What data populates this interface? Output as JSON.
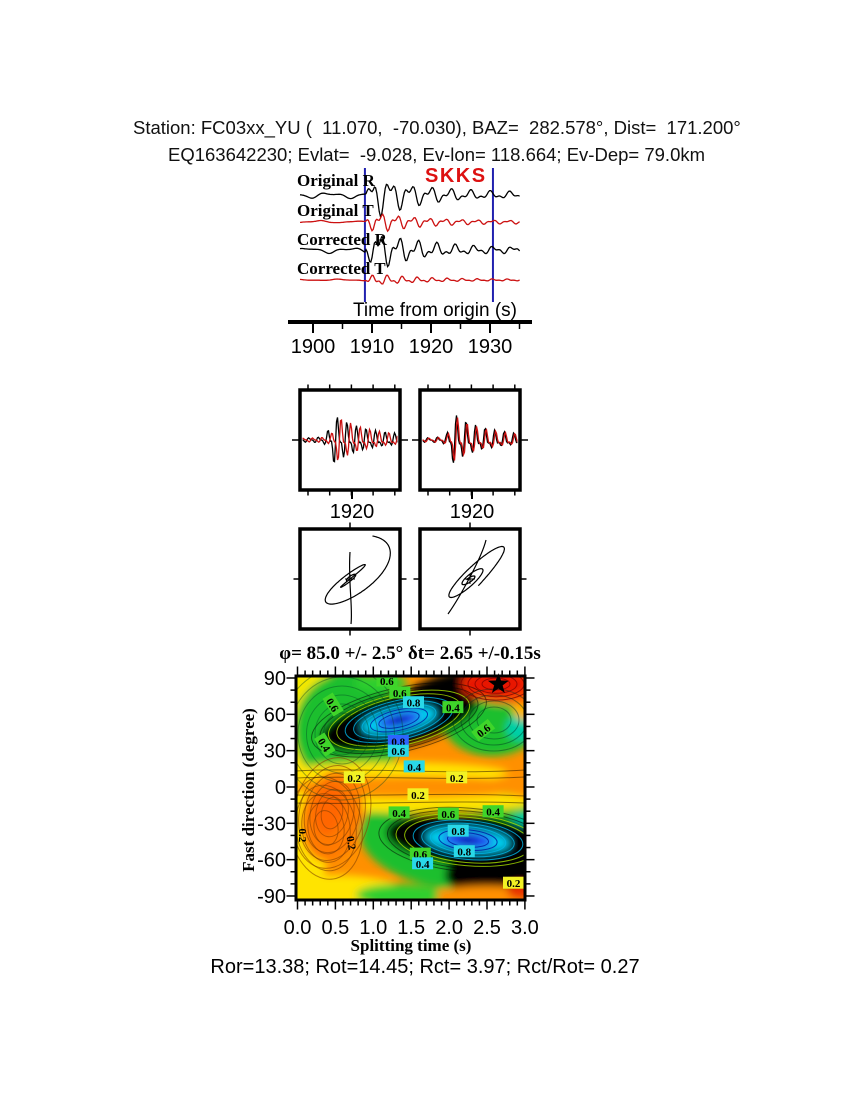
{
  "header": {
    "line1": "Station: FC03xx_YU (  11.070,  -70.030), BAZ=  282.578°, Dist=  171.200°",
    "line2": "EQ163642230; Evlat=  -9.028, Ev-lon= 118.664; Ev-Dep= 79.0km"
  },
  "waveform_panel": {
    "phase_label": "SKKS",
    "pick_color": "#2121af",
    "window_s": [
      1908.8,
      1930.5
    ],
    "axis_label": "Time from origin (s)",
    "ticks": [
      1900,
      1910,
      1920,
      1930
    ],
    "traces": [
      {
        "label": "Original R",
        "color": "#000000",
        "synth": {
          "amp": 26,
          "p1": 20,
          "p2": 9.5,
          "ph1": 0.2,
          "ph2": 1.1
        }
      },
      {
        "label": "Original T",
        "color": "#cc1111",
        "synth": {
          "amp": 13,
          "p1": 16,
          "p2": 8.0,
          "ph1": 2.1,
          "ph2": 0.4
        }
      },
      {
        "label": "Corrected R",
        "color": "#000000",
        "synth": {
          "amp": 24,
          "p1": 19,
          "p2": 9.0,
          "ph1": 3.4,
          "ph2": 2.2
        }
      },
      {
        "label": "Corrected T",
        "color": "#cc1111",
        "synth": {
          "amp": 7,
          "p1": 15,
          "p2": 7.5,
          "ph1": 5.0,
          "ph2": 3.0
        }
      }
    ]
  },
  "comparison_panel": {
    "boxes": [
      {
        "tick_label": "1920",
        "red_shift": 4.5
      },
      {
        "tick_label": "1920",
        "red_shift": 1.2
      }
    ],
    "colors": {
      "black": "#000000",
      "red": "#cc1111"
    }
  },
  "particle_motion_panel": {
    "styles": [
      "elliptical",
      "linear"
    ]
  },
  "contour_panel": {
    "title": "φ= 85.0 +/- 2.5° δt= 2.65 +/-0.15s",
    "ylabel": "Fast direction (degree)",
    "xlabel": "Splitting time (s)",
    "yticks": [
      "90",
      "60",
      "30",
      "0",
      "-30",
      "-60",
      "-90"
    ],
    "xticks": [
      "0.0",
      "0.5",
      "1.0",
      "1.5",
      "2.0",
      "2.5",
      "3.0"
    ],
    "star": {
      "dt": 2.65,
      "phi": 85
    },
    "label_colors": {
      "g": "#3fd52a",
      "c": "#29d8e8",
      "b": "#2e64ff",
      "y": "#f2f224",
      "o": "#ff9000",
      "n": "none"
    },
    "labels": [
      {
        "v": "0.6",
        "t": 1.18,
        "p": 88,
        "bg": "g",
        "r": 0
      },
      {
        "v": "0.6",
        "t": 1.35,
        "p": 78,
        "bg": "g",
        "r": 0
      },
      {
        "v": "0.8",
        "t": 1.53,
        "p": 70,
        "bg": "c",
        "r": 0
      },
      {
        "v": "0.4",
        "t": 2.05,
        "p": 66,
        "bg": "g",
        "r": 0
      },
      {
        "v": "0.6",
        "t": 2.45,
        "p": 47,
        "bg": "g",
        "r": -38
      },
      {
        "v": "0.6",
        "t": 0.47,
        "p": 68,
        "bg": "g",
        "r": 58
      },
      {
        "v": "0.4",
        "t": 0.36,
        "p": 35,
        "bg": "g",
        "r": 58
      },
      {
        "v": "0.8",
        "t": 1.33,
        "p": 38,
        "bg": "b",
        "r": 0
      },
      {
        "v": "0.6",
        "t": 1.33,
        "p": 30,
        "bg": "c",
        "r": 0
      },
      {
        "v": "0.4",
        "t": 1.54,
        "p": 17,
        "bg": "c",
        "r": 0
      },
      {
        "v": "0.2",
        "t": 0.75,
        "p": 8,
        "bg": "y",
        "r": 0
      },
      {
        "v": "0.2",
        "t": 2.1,
        "p": 8,
        "bg": "y",
        "r": 0
      },
      {
        "v": "0.2",
        "t": 1.59,
        "p": -6,
        "bg": "y",
        "r": 0
      },
      {
        "v": "0.4",
        "t": 1.34,
        "p": -21,
        "bg": "g",
        "r": 0
      },
      {
        "v": "0.6",
        "t": 1.99,
        "p": -22,
        "bg": "g",
        "r": 0
      },
      {
        "v": "0.4",
        "t": 2.58,
        "p": -20,
        "bg": "g",
        "r": 0
      },
      {
        "v": "0.8",
        "t": 2.12,
        "p": -36,
        "bg": "c",
        "r": 0
      },
      {
        "v": "0.8",
        "t": 2.2,
        "p": -53,
        "bg": "c",
        "r": 0
      },
      {
        "v": "0.6",
        "t": 1.62,
        "p": -55,
        "bg": "g",
        "r": 0
      },
      {
        "v": "0.4",
        "t": 1.65,
        "p": -63,
        "bg": "c",
        "r": 0
      },
      {
        "v": "0.2",
        "t": 2.85,
        "p": -79,
        "bg": "y",
        "r": 0
      },
      {
        "v": "0.2",
        "t": 0.08,
        "p": -40,
        "bg": "n",
        "r": 90
      },
      {
        "v": "0.2",
        "t": 0.72,
        "p": -46,
        "bg": "n",
        "r": 80
      }
    ]
  },
  "footer": {
    "text": "Ror=13.38; Rot=14.45; Rct= 3.97; Rct/Rot= 0.27"
  },
  "chart_data": {
    "type": "contour",
    "title": "SKKS splitting misfit surface",
    "xlabel": "Splitting time (s)",
    "ylabel": "Fast direction (degree)",
    "xlim": [
      0.0,
      3.0
    ],
    "ylim": [
      -90,
      90
    ],
    "x_ticks": [
      0.0,
      0.5,
      1.0,
      1.5,
      2.0,
      2.5,
      3.0
    ],
    "y_ticks": [
      90,
      60,
      30,
      0,
      -30,
      -60,
      -90
    ],
    "best_solution": {
      "fast_direction_deg": 85.0,
      "fast_direction_err_deg": 2.5,
      "split_time_s": 2.65,
      "split_time_err_s": 0.15
    },
    "star_marker": {
      "x": 2.65,
      "y": 85
    },
    "misfit_minima": [
      {
        "x": 1.34,
        "y": 55
      },
      {
        "x": 2.25,
        "y": -45
      }
    ],
    "contour_levels_labeled": [
      0.2,
      0.4,
      0.6,
      0.8
    ],
    "quality_metrics": {
      "Ror": 13.38,
      "Rot": 14.45,
      "Rct": 3.97,
      "Rct_over_Rot": 0.27
    },
    "waveform_time_ticks_s": [
      1900,
      1910,
      1920,
      1930
    ],
    "analysis_window_s": [
      1908.8,
      1930.5
    ],
    "phase": "SKKS",
    "station": "FC03xx_YU",
    "station_lat": 11.07,
    "station_lon": -70.03,
    "baz_deg": 282.578,
    "dist_deg": 171.2,
    "event": {
      "id": "EQ163642230",
      "lat": -9.028,
      "lon": 118.664,
      "depth_km": 79.0
    }
  }
}
